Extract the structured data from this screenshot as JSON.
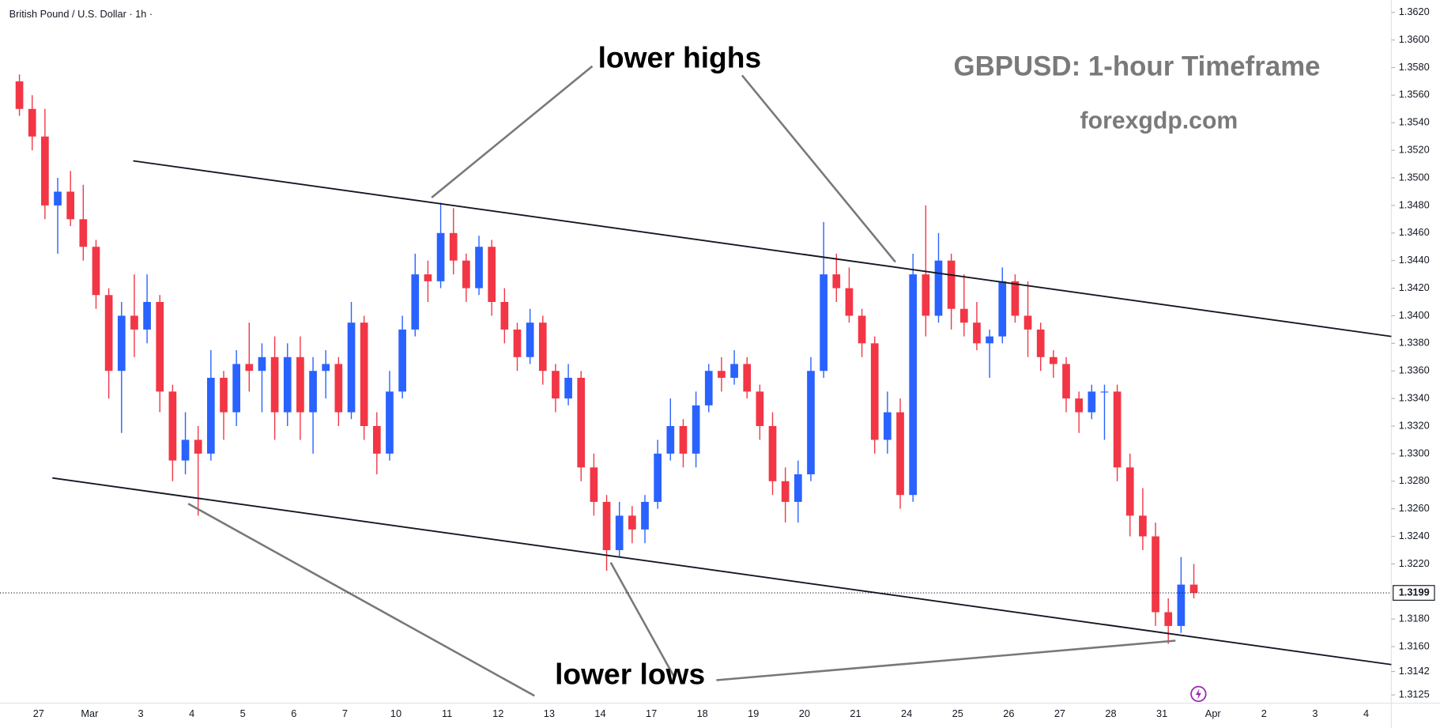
{
  "chart_data": {
    "type": "candlestick",
    "header": "British Pound / U.S. Dollar · 1h ·",
    "title": "GBPUSD: 1-hour Timeframe",
    "subtitle": "forexgdp.com",
    "annotations": [
      "lower highs",
      "lower lows"
    ],
    "categories": [
      null,
      "27",
      "Mar",
      "3",
      "4",
      "5",
      "6",
      "7",
      "10",
      "11",
      "12",
      "13",
      "14",
      "17",
      "18",
      "19",
      "20",
      "21",
      "24",
      "25",
      "26",
      "27",
      "28",
      "31",
      "Apr",
      "2",
      "3",
      "4"
    ],
    "up_color": "#2962ff",
    "down_color": "#f23645",
    "last_price": 1.3199,
    "ylim": [
      1.3119,
      1.3629
    ],
    "yticks": [
      {
        "value": 1.362,
        "label": "1.3620"
      },
      {
        "value": 1.36,
        "label": "1.3600"
      },
      {
        "value": 1.358,
        "label": "1.3580"
      },
      {
        "value": 1.356,
        "label": "1.3560"
      },
      {
        "value": 1.354,
        "label": "1.3540"
      },
      {
        "value": 1.352,
        "label": "1.3520"
      },
      {
        "value": 1.35,
        "label": "1.3500"
      },
      {
        "value": 1.348,
        "label": "1.3480"
      },
      {
        "value": 1.346,
        "label": "1.3460"
      },
      {
        "value": 1.344,
        "label": "1.3440"
      },
      {
        "value": 1.342,
        "label": "1.3420"
      },
      {
        "value": 1.34,
        "label": "1.3400"
      },
      {
        "value": 1.338,
        "label": "1.3380"
      },
      {
        "value": 1.336,
        "label": "1.3360"
      },
      {
        "value": 1.334,
        "label": "1.3340"
      },
      {
        "value": 1.332,
        "label": "1.3320"
      },
      {
        "value": 1.33,
        "label": "1.3300"
      },
      {
        "value": 1.328,
        "label": "1.3280"
      },
      {
        "value": 1.326,
        "label": "1.3260"
      },
      {
        "value": 1.324,
        "label": "1.3240"
      },
      {
        "value": 1.322,
        "label": "1.3220"
      },
      {
        "value": 1.318,
        "label": "1.3180"
      },
      {
        "value": 1.316,
        "label": "1.3160"
      },
      {
        "value": 1.3142,
        "label": "1.3142"
      },
      {
        "value": 1.3125,
        "label": "1.3125"
      }
    ],
    "series": [
      {
        "values": [
          [
            1.357,
            1.3575,
            1.3545,
            1.355
          ],
          [
            1.355,
            1.356,
            1.352,
            1.353
          ],
          [
            1.353,
            1.355,
            1.347,
            1.348
          ],
          [
            1.348,
            1.35,
            1.3445,
            1.349
          ],
          [
            1.349,
            1.3505,
            1.3465,
            1.347
          ],
          [
            1.347,
            1.3495,
            1.344,
            1.345
          ],
          [
            1.345,
            1.3455,
            1.3405,
            1.3415
          ],
          [
            1.3415,
            1.342,
            1.334,
            1.336
          ],
          [
            1.336,
            1.341,
            1.3315,
            1.34
          ],
          [
            1.34,
            1.343,
            1.337,
            1.339
          ],
          [
            1.339,
            1.343,
            1.338,
            1.341
          ],
          [
            1.341,
            1.3415,
            1.333,
            1.3345
          ],
          [
            1.3345,
            1.335,
            1.328,
            1.3295
          ],
          [
            1.3295,
            1.333,
            1.3285,
            1.331
          ],
          [
            1.331,
            1.332,
            1.3255,
            1.33
          ],
          [
            1.33,
            1.3375,
            1.3295,
            1.3355
          ],
          [
            1.3355,
            1.336,
            1.331,
            1.333
          ],
          [
            1.333,
            1.3375,
            1.332,
            1.3365
          ],
          [
            1.3365,
            1.3395,
            1.3345,
            1.336
          ],
          [
            1.336,
            1.338,
            1.333,
            1.337
          ],
          [
            1.337,
            1.3385,
            1.331,
            1.333
          ],
          [
            1.333,
            1.338,
            1.332,
            1.337
          ],
          [
            1.337,
            1.3385,
            1.331,
            1.333
          ],
          [
            1.333,
            1.337,
            1.33,
            1.336
          ],
          [
            1.336,
            1.3375,
            1.334,
            1.3365
          ],
          [
            1.3365,
            1.337,
            1.332,
            1.333
          ],
          [
            1.333,
            1.341,
            1.3325,
            1.3395
          ],
          [
            1.3395,
            1.34,
            1.331,
            1.332
          ],
          [
            1.332,
            1.333,
            1.3285,
            1.33
          ],
          [
            1.33,
            1.336,
            1.3295,
            1.3345
          ],
          [
            1.3345,
            1.34,
            1.334,
            1.339
          ],
          [
            1.339,
            1.3445,
            1.3385,
            1.343
          ],
          [
            1.343,
            1.344,
            1.341,
            1.3425
          ],
          [
            1.3425,
            1.3482,
            1.342,
            1.346
          ],
          [
            1.346,
            1.3478,
            1.343,
            1.344
          ],
          [
            1.344,
            1.3445,
            1.341,
            1.342
          ],
          [
            1.342,
            1.3458,
            1.3415,
            1.345
          ],
          [
            1.345,
            1.3455,
            1.34,
            1.341
          ],
          [
            1.341,
            1.342,
            1.338,
            1.339
          ],
          [
            1.339,
            1.3395,
            1.336,
            1.337
          ],
          [
            1.337,
            1.3405,
            1.3365,
            1.3395
          ],
          [
            1.3395,
            1.34,
            1.335,
            1.336
          ],
          [
            1.336,
            1.3365,
            1.333,
            1.334
          ],
          [
            1.334,
            1.3365,
            1.3335,
            1.3355
          ],
          [
            1.3355,
            1.336,
            1.328,
            1.329
          ],
          [
            1.329,
            1.33,
            1.3255,
            1.3265
          ],
          [
            1.3265,
            1.327,
            1.3215,
            1.323
          ],
          [
            1.323,
            1.3265,
            1.3225,
            1.3255
          ],
          [
            1.3255,
            1.3262,
            1.3235,
            1.3245
          ],
          [
            1.3245,
            1.327,
            1.3235,
            1.3265
          ],
          [
            1.3265,
            1.331,
            1.326,
            1.33
          ],
          [
            1.33,
            1.334,
            1.3295,
            1.332
          ],
          [
            1.332,
            1.3325,
            1.329,
            1.33
          ],
          [
            1.33,
            1.3345,
            1.329,
            1.3335
          ],
          [
            1.3335,
            1.3365,
            1.333,
            1.336
          ],
          [
            1.336,
            1.337,
            1.3345,
            1.3355
          ],
          [
            1.3355,
            1.3375,
            1.335,
            1.3365
          ],
          [
            1.3365,
            1.337,
            1.334,
            1.3345
          ],
          [
            1.3345,
            1.335,
            1.331,
            1.332
          ],
          [
            1.332,
            1.333,
            1.327,
            1.328
          ],
          [
            1.328,
            1.329,
            1.325,
            1.3265
          ],
          [
            1.3265,
            1.3295,
            1.325,
            1.3285
          ],
          [
            1.3285,
            1.337,
            1.328,
            1.336
          ],
          [
            1.336,
            1.3468,
            1.3355,
            1.343
          ],
          [
            1.343,
            1.3445,
            1.341,
            1.342
          ],
          [
            1.342,
            1.3435,
            1.3395,
            1.34
          ],
          [
            1.34,
            1.3405,
            1.337,
            1.338
          ],
          [
            1.338,
            1.3385,
            1.33,
            1.331
          ],
          [
            1.331,
            1.3345,
            1.33,
            1.333
          ],
          [
            1.333,
            1.334,
            1.326,
            1.327
          ],
          [
            1.327,
            1.3445,
            1.3265,
            1.343
          ],
          [
            1.343,
            1.348,
            1.3385,
            1.34
          ],
          [
            1.34,
            1.346,
            1.3395,
            1.344
          ],
          [
            1.344,
            1.3445,
            1.339,
            1.3405
          ],
          [
            1.3405,
            1.343,
            1.3385,
            1.3395
          ],
          [
            1.3395,
            1.341,
            1.3375,
            1.338
          ],
          [
            1.338,
            1.339,
            1.3355,
            1.3385
          ],
          [
            1.3385,
            1.3435,
            1.338,
            1.3425
          ],
          [
            1.3425,
            1.343,
            1.3395,
            1.34
          ],
          [
            1.34,
            1.3425,
            1.337,
            1.339
          ],
          [
            1.339,
            1.3395,
            1.336,
            1.337
          ],
          [
            1.337,
            1.3375,
            1.3355,
            1.3365
          ],
          [
            1.3365,
            1.337,
            1.333,
            1.334
          ],
          [
            1.334,
            1.3345,
            1.3315,
            1.333
          ],
          [
            1.333,
            1.335,
            1.3325,
            1.3345
          ],
          [
            1.3345,
            1.335,
            1.331,
            1.3345
          ],
          [
            1.3345,
            1.335,
            1.328,
            1.329
          ],
          [
            1.329,
            1.33,
            1.324,
            1.3255
          ],
          [
            1.3255,
            1.3275,
            1.323,
            1.324
          ],
          [
            1.324,
            1.325,
            1.3175,
            1.3185
          ],
          [
            1.3185,
            1.3195,
            1.3162,
            1.3175
          ],
          [
            1.3175,
            1.3225,
            1.317,
            1.3205
          ],
          [
            1.3205,
            1.322,
            1.3195,
            1.3199
          ]
        ]
      }
    ]
  }
}
